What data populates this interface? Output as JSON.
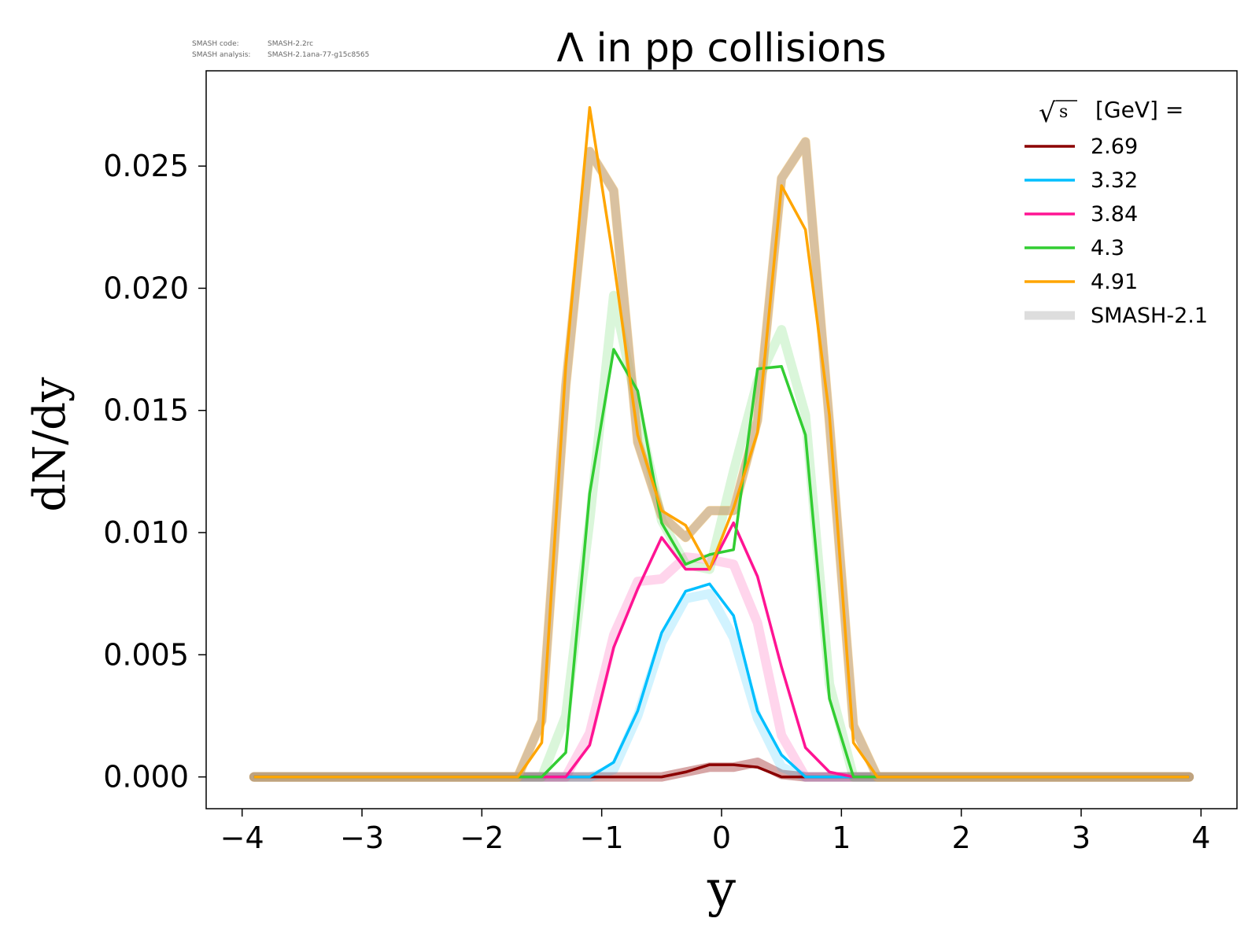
{
  "chart_data": {
    "type": "line",
    "title": "Λ in pp collisions",
    "xlabel": "y",
    "ylabel": "dN/dy",
    "xlim": [
      -4.3,
      4.3
    ],
    "ylim": [
      -0.0013,
      0.0289
    ],
    "xticks": [
      -4,
      -3,
      -2,
      -1,
      0,
      1,
      2,
      3,
      4
    ],
    "xtick_labels": [
      "−4",
      "−3",
      "−2",
      "−1",
      "0",
      "1",
      "2",
      "3",
      "4"
    ],
    "yticks": [
      0.0,
      0.005,
      0.01,
      0.015,
      0.02,
      0.025
    ],
    "ytick_labels": [
      "0.000",
      "0.005",
      "0.010",
      "0.015",
      "0.020",
      "0.025"
    ],
    "grid": false,
    "legend_position": "top-right",
    "legend_title_root": "s",
    "legend_title_rest": "[GeV] =",
    "legend_entries": [
      "2.69",
      "3.32",
      "3.84",
      "4.3",
      "4.91",
      "SMASH-2.1"
    ],
    "legend_colors": [
      "#8b0000",
      "#00bfff",
      "#ff1493",
      "#32cd32",
      "#ffa500",
      "#dddddd"
    ],
    "version_info": [
      {
        "label": "SMASH code:",
        "value": "SMASH-2.2rc"
      },
      {
        "label": "SMASH analysis:",
        "value": "SMASH-2.1ana-77-g15c8565"
      }
    ],
    "series": [
      {
        "name": "2.69",
        "color": "#8b0000",
        "ref_values": [
          0,
          0,
          0,
          0,
          0,
          0,
          0,
          0,
          0,
          0,
          0,
          0,
          0,
          0,
          0,
          0,
          0,
          0,
          0.0002,
          0.0004,
          0.0004,
          0.0006,
          0.0001,
          0,
          0,
          0,
          0,
          0,
          0,
          0,
          0,
          0,
          0,
          0,
          0,
          0,
          0,
          0,
          0,
          0
        ],
        "values": [
          0,
          0,
          0,
          0,
          0,
          0,
          0,
          0,
          0,
          0,
          0,
          0,
          0,
          0,
          0,
          0,
          0,
          0,
          0.0002,
          0.0005,
          0.0005,
          0.0004,
          0,
          0,
          0,
          0,
          0,
          0,
          0,
          0,
          0,
          0,
          0,
          0,
          0,
          0,
          0,
          0,
          0,
          0
        ]
      },
      {
        "name": "3.32",
        "color": "#00bfff",
        "ref_values": [
          0,
          0,
          0,
          0,
          0,
          0,
          0,
          0,
          0,
          0,
          0,
          0,
          0,
          0,
          0,
          0.0003,
          0.0025,
          0.0055,
          0.0073,
          0.0075,
          0.0057,
          0.0024,
          0.0004,
          0,
          0,
          0,
          0,
          0,
          0,
          0,
          0,
          0,
          0,
          0,
          0,
          0,
          0,
          0,
          0,
          0
        ],
        "values": [
          0,
          0,
          0,
          0,
          0,
          0,
          0,
          0,
          0,
          0,
          0,
          0,
          0,
          0,
          0,
          0.0006,
          0.0027,
          0.0059,
          0.0076,
          0.0079,
          0.0066,
          0.0027,
          0.0009,
          0,
          0,
          0,
          0,
          0,
          0,
          0,
          0,
          0,
          0,
          0,
          0,
          0,
          0,
          0,
          0,
          0
        ]
      },
      {
        "name": "3.84",
        "color": "#ff1493",
        "ref_values": [
          0,
          0,
          0,
          0,
          0,
          0,
          0,
          0,
          0,
          0,
          0,
          0,
          0,
          0,
          0.0018,
          0.0058,
          0.008,
          0.0081,
          0.009,
          0.0089,
          0.0087,
          0.0063,
          0.0017,
          0,
          0,
          0,
          0,
          0,
          0,
          0,
          0,
          0,
          0,
          0,
          0,
          0,
          0,
          0,
          0,
          0
        ],
        "values": [
          0,
          0,
          0,
          0,
          0,
          0,
          0,
          0,
          0,
          0,
          0,
          0,
          0,
          0,
          0.0013,
          0.0053,
          0.0077,
          0.0098,
          0.0085,
          0.0085,
          0.0104,
          0.0082,
          0.0045,
          0.0012,
          0.0002,
          0,
          0,
          0,
          0,
          0,
          0,
          0,
          0,
          0,
          0,
          0,
          0,
          0,
          0,
          0
        ]
      },
      {
        "name": "4.3",
        "color": "#32cd32",
        "ref_values": [
          0,
          0,
          0,
          0,
          0,
          0,
          0,
          0,
          0,
          0,
          0,
          0,
          0,
          0.0025,
          0.0105,
          0.0197,
          0.015,
          0.0105,
          0.0087,
          0.0085,
          0.0125,
          0.0162,
          0.0183,
          0.0148,
          0.0038,
          0,
          0,
          0,
          0,
          0,
          0,
          0,
          0,
          0,
          0,
          0,
          0,
          0,
          0,
          0
        ],
        "values": [
          0,
          0,
          0,
          0,
          0,
          0,
          0,
          0,
          0,
          0,
          0,
          0,
          0,
          0.001,
          0.0116,
          0.0175,
          0.0158,
          0.0104,
          0.0087,
          0.0091,
          0.0093,
          0.0167,
          0.0168,
          0.014,
          0.0032,
          0,
          0,
          0,
          0,
          0,
          0,
          0,
          0,
          0,
          0,
          0,
          0,
          0,
          0,
          0
        ]
      },
      {
        "name": "4.91",
        "color": "#ffa500",
        "ref_values": [
          0,
          0,
          0,
          0,
          0,
          0,
          0,
          0,
          0,
          0,
          0,
          0,
          0.0023,
          0.016,
          0.0256,
          0.024,
          0.0137,
          0.0107,
          0.0098,
          0.0109,
          0.0109,
          0.0146,
          0.0245,
          0.026,
          0.0145,
          0.0021,
          0,
          0,
          0,
          0,
          0,
          0,
          0,
          0,
          0,
          0,
          0,
          0,
          0,
          0
        ],
        "values": [
          0,
          0,
          0,
          0,
          0,
          0,
          0,
          0,
          0,
          0,
          0,
          0,
          0.0014,
          0.0168,
          0.0274,
          0.0211,
          0.014,
          0.0109,
          0.0103,
          0.0085,
          0.011,
          0.0141,
          0.0242,
          0.0224,
          0.0148,
          0.0014,
          0,
          0,
          0,
          0,
          0,
          0,
          0,
          0,
          0,
          0,
          0,
          0,
          0,
          0
        ]
      }
    ]
  }
}
